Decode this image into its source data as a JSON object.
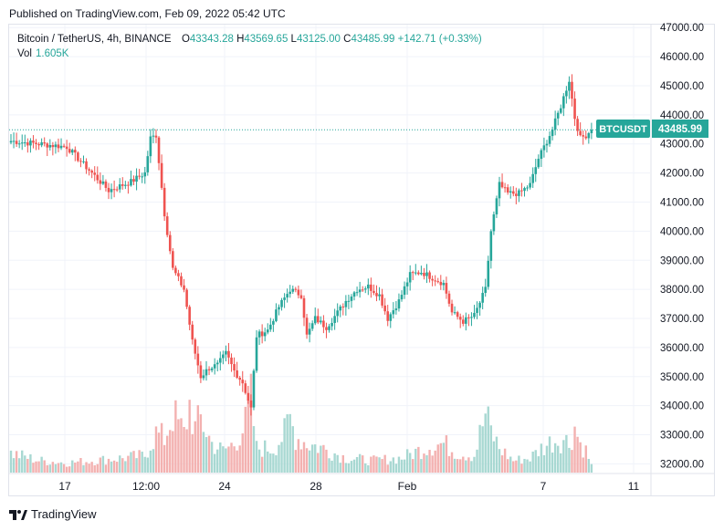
{
  "header": {
    "published": "Published on TradingView.com, Feb 09, 2022 05:42 UTC"
  },
  "legend": {
    "symbol": "Bitcoin / TetherUS, 4h, BINANCE",
    "open_label": "O",
    "open": "43343.28",
    "high_label": "H",
    "high": "43569.65",
    "low_label": "L",
    "low": "43125.00",
    "close_label": "C",
    "close": "43485.99",
    "change": "+142.71 (+0.33%)",
    "vol_label": "Vol",
    "vol": "1.605K"
  },
  "price_tag": {
    "symbol": "BTCUSDT",
    "price": "43485.99"
  },
  "footer": {
    "brand": "TradingView"
  },
  "colors": {
    "up": "#26a69a",
    "down": "#ef5350",
    "vol_up": "#a8d8d2",
    "vol_down": "#f3b1b0",
    "grid": "#f0f3fa"
  },
  "chart_data": {
    "type": "candlestick",
    "ylim": [
      31700,
      47100
    ],
    "y_ticks": [
      "32000.00",
      "33000.00",
      "34000.00",
      "35000.00",
      "36000.00",
      "37000.00",
      "38000.00",
      "39000.00",
      "40000.00",
      "41000.00",
      "42000.00",
      "43000.00",
      "44000.00",
      "45000.00",
      "46000.00",
      "47000.00"
    ],
    "x_ticks": [
      "17",
      "12:00",
      "24",
      "28",
      "Feb",
      "7",
      "11"
    ],
    "anchors": [
      {
        "i": 0,
        "p": 43100
      },
      {
        "i": 10,
        "p": 43000
      },
      {
        "i": 20,
        "p": 42900
      },
      {
        "i": 27,
        "p": 42200
      },
      {
        "i": 35,
        "p": 41400
      },
      {
        "i": 43,
        "p": 41700
      },
      {
        "i": 48,
        "p": 42000
      },
      {
        "i": 50,
        "p": 43200
      },
      {
        "i": 52,
        "p": 43300
      },
      {
        "i": 55,
        "p": 40600
      },
      {
        "i": 58,
        "p": 38700
      },
      {
        "i": 62,
        "p": 38000
      },
      {
        "i": 65,
        "p": 36200
      },
      {
        "i": 68,
        "p": 35000
      },
      {
        "i": 71,
        "p": 35300
      },
      {
        "i": 74,
        "p": 35400
      },
      {
        "i": 77,
        "p": 35800
      },
      {
        "i": 80,
        "p": 35200
      },
      {
        "i": 83,
        "p": 34800
      },
      {
        "i": 86,
        "p": 33900
      },
      {
        "i": 88,
        "p": 36400
      },
      {
        "i": 92,
        "p": 36600
      },
      {
        "i": 96,
        "p": 37400
      },
      {
        "i": 100,
        "p": 38000
      },
      {
        "i": 104,
        "p": 37800
      },
      {
        "i": 106,
        "p": 36400
      },
      {
        "i": 109,
        "p": 37000
      },
      {
        "i": 113,
        "p": 36700
      },
      {
        "i": 117,
        "p": 37200
      },
      {
        "i": 120,
        "p": 37600
      },
      {
        "i": 124,
        "p": 38000
      },
      {
        "i": 128,
        "p": 38100
      },
      {
        "i": 132,
        "p": 37800
      },
      {
        "i": 135,
        "p": 37000
      },
      {
        "i": 139,
        "p": 37600
      },
      {
        "i": 143,
        "p": 38500
      },
      {
        "i": 147,
        "p": 38600
      },
      {
        "i": 151,
        "p": 38400
      },
      {
        "i": 155,
        "p": 38200
      },
      {
        "i": 158,
        "p": 37200
      },
      {
        "i": 162,
        "p": 36900
      },
      {
        "i": 166,
        "p": 37100
      },
      {
        "i": 170,
        "p": 38000
      },
      {
        "i": 172,
        "p": 40000
      },
      {
        "i": 175,
        "p": 41600
      },
      {
        "i": 178,
        "p": 41300
      },
      {
        "i": 182,
        "p": 41300
      },
      {
        "i": 186,
        "p": 41600
      },
      {
        "i": 189,
        "p": 42500
      },
      {
        "i": 192,
        "p": 43100
      },
      {
        "i": 194,
        "p": 43500
      },
      {
        "i": 197,
        "p": 44300
      },
      {
        "i": 200,
        "p": 45200
      },
      {
        "i": 202,
        "p": 43900
      },
      {
        "i": 204,
        "p": 43200
      },
      {
        "i": 206,
        "p": 43300
      },
      {
        "i": 208,
        "p": 43486
      }
    ],
    "volumes": [
      {
        "i": 0,
        "v": 0.8
      },
      {
        "i": 10,
        "v": 0.5
      },
      {
        "i": 20,
        "v": 0.4
      },
      {
        "i": 30,
        "v": 0.5
      },
      {
        "i": 40,
        "v": 0.6
      },
      {
        "i": 48,
        "v": 0.7
      },
      {
        "i": 50,
        "v": 1.2
      },
      {
        "i": 52,
        "v": 1.6
      },
      {
        "i": 55,
        "v": 1.4
      },
      {
        "i": 58,
        "v": 2.4
      },
      {
        "i": 62,
        "v": 1.6
      },
      {
        "i": 64,
        "v": 2.8
      },
      {
        "i": 66,
        "v": 1.8
      },
      {
        "i": 68,
        "v": 2.2
      },
      {
        "i": 72,
        "v": 1.2
      },
      {
        "i": 76,
        "v": 0.9
      },
      {
        "i": 80,
        "v": 1.2
      },
      {
        "i": 84,
        "v": 2.0
      },
      {
        "i": 86,
        "v": 3.0
      },
      {
        "i": 88,
        "v": 1.0
      },
      {
        "i": 94,
        "v": 1.0
      },
      {
        "i": 98,
        "v": 1.6
      },
      {
        "i": 100,
        "v": 2.2
      },
      {
        "i": 102,
        "v": 1.5
      },
      {
        "i": 106,
        "v": 1.2
      },
      {
        "i": 112,
        "v": 1.0
      },
      {
        "i": 120,
        "v": 0.6
      },
      {
        "i": 130,
        "v": 0.5
      },
      {
        "i": 140,
        "v": 0.6
      },
      {
        "i": 146,
        "v": 0.9
      },
      {
        "i": 150,
        "v": 1.1
      },
      {
        "i": 155,
        "v": 1.2
      },
      {
        "i": 160,
        "v": 0.8
      },
      {
        "i": 166,
        "v": 0.7
      },
      {
        "i": 170,
        "v": 2.4
      },
      {
        "i": 172,
        "v": 1.7
      },
      {
        "i": 175,
        "v": 1.0
      },
      {
        "i": 180,
        "v": 0.5
      },
      {
        "i": 186,
        "v": 0.6
      },
      {
        "i": 190,
        "v": 1.0
      },
      {
        "i": 194,
        "v": 1.3
      },
      {
        "i": 198,
        "v": 1.4
      },
      {
        "i": 200,
        "v": 1.2
      },
      {
        "i": 202,
        "v": 1.9
      },
      {
        "i": 204,
        "v": 1.2
      },
      {
        "i": 206,
        "v": 0.9
      },
      {
        "i": 208,
        "v": 0.3
      }
    ]
  }
}
